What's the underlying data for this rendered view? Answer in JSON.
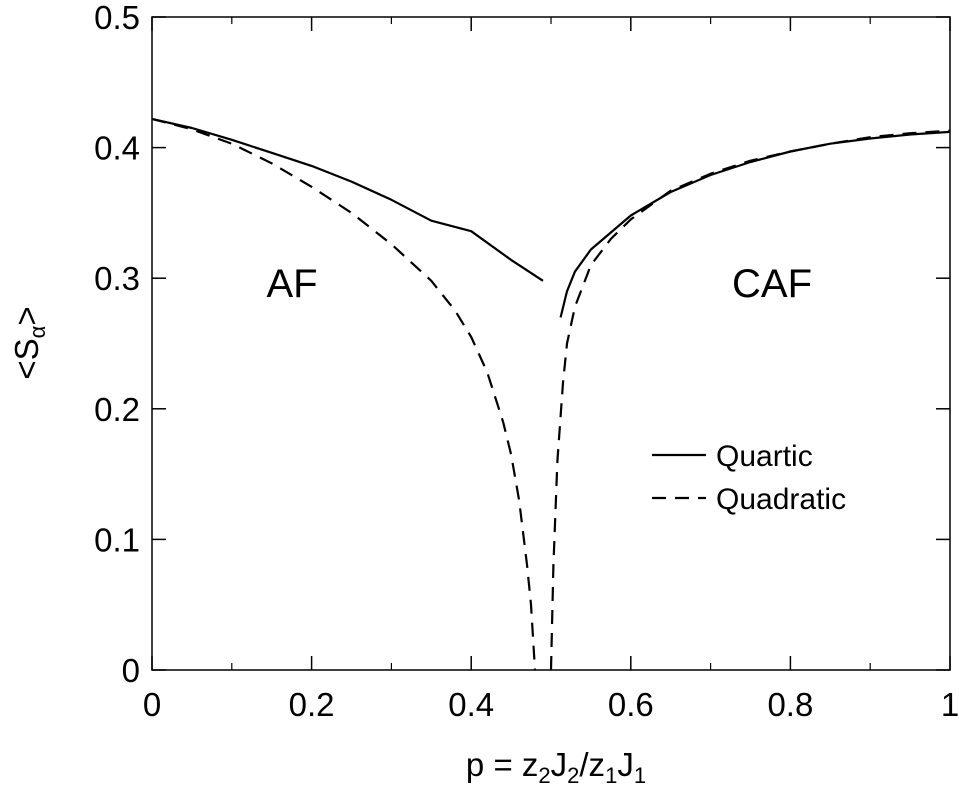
{
  "chart_data": {
    "type": "line",
    "xlabel": {
      "pre": "p = z",
      "s1": "2",
      "m1": "J",
      "s2": "2",
      "m2": "/z",
      "s3": "1",
      "m3": "J",
      "s4": "1"
    },
    "ylabel": {
      "pre": "<S",
      "sub": "α",
      "post": ">"
    },
    "xlim": [
      0,
      1
    ],
    "ylim": [
      0,
      0.5
    ],
    "xticks": [
      0,
      0.2,
      0.4,
      0.6,
      0.8,
      1
    ],
    "xtick_labels": [
      "0",
      "0.2",
      "0.4",
      "0.6",
      "0.8",
      "1"
    ],
    "yticks": [
      0,
      0.1,
      0.2,
      0.3,
      0.4,
      0.5
    ],
    "ytick_labels": [
      "0",
      "0.1",
      "0.2",
      "0.3",
      "0.4",
      "0.5"
    ],
    "grid": false,
    "legend_position": "center-right",
    "annotations": [
      "AF",
      "CAF"
    ],
    "series": [
      {
        "name": "Quartic",
        "style": "solid",
        "segments": [
          [
            [
              0,
              0.422
            ],
            [
              0.05,
              0.415
            ],
            [
              0.1,
              0.406
            ],
            [
              0.15,
              0.396
            ],
            [
              0.2,
              0.386
            ],
            [
              0.25,
              0.374
            ],
            [
              0.3,
              0.36
            ],
            [
              0.35,
              0.344
            ],
            [
              0.4,
              0.336
            ],
            [
              0.45,
              0.314
            ],
            [
              0.49,
              0.298
            ]
          ],
          [
            [
              0.512,
              0.27
            ],
            [
              0.52,
              0.29
            ],
            [
              0.53,
              0.305
            ],
            [
              0.55,
              0.322
            ],
            [
              0.6,
              0.348
            ],
            [
              0.65,
              0.366
            ],
            [
              0.7,
              0.379
            ],
            [
              0.75,
              0.389
            ],
            [
              0.8,
              0.397
            ],
            [
              0.85,
              0.403
            ],
            [
              0.9,
              0.407
            ],
            [
              0.95,
              0.41
            ],
            [
              1.0,
              0.412
            ]
          ]
        ]
      },
      {
        "name": "Quadratic",
        "style": "dashed",
        "segments": [
          [
            [
              0,
              0.422
            ],
            [
              0.05,
              0.414
            ],
            [
              0.1,
              0.403
            ],
            [
              0.15,
              0.388
            ],
            [
              0.2,
              0.37
            ],
            [
              0.25,
              0.35
            ],
            [
              0.3,
              0.326
            ],
            [
              0.35,
              0.298
            ],
            [
              0.38,
              0.275
            ],
            [
              0.4,
              0.255
            ],
            [
              0.42,
              0.228
            ],
            [
              0.44,
              0.19
            ],
            [
              0.45,
              0.165
            ],
            [
              0.46,
              0.13
            ],
            [
              0.47,
              0.08
            ],
            [
              0.475,
              0.05
            ],
            [
              0.48,
              0.0
            ]
          ],
          [
            [
              0.5,
              0.0
            ],
            [
              0.503,
              0.08
            ],
            [
              0.508,
              0.16
            ],
            [
              0.515,
              0.22
            ],
            [
              0.52,
              0.25
            ],
            [
              0.53,
              0.278
            ],
            [
              0.55,
              0.31
            ],
            [
              0.575,
              0.33
            ],
            [
              0.6,
              0.345
            ],
            [
              0.65,
              0.367
            ],
            [
              0.7,
              0.38
            ],
            [
              0.75,
              0.39
            ],
            [
              0.8,
              0.397
            ],
            [
              0.85,
              0.403
            ],
            [
              0.9,
              0.408
            ],
            [
              0.95,
              0.411
            ],
            [
              1.0,
              0.413
            ]
          ]
        ]
      }
    ],
    "colors": {
      "line": "#000000",
      "background": "#ffffff"
    }
  }
}
